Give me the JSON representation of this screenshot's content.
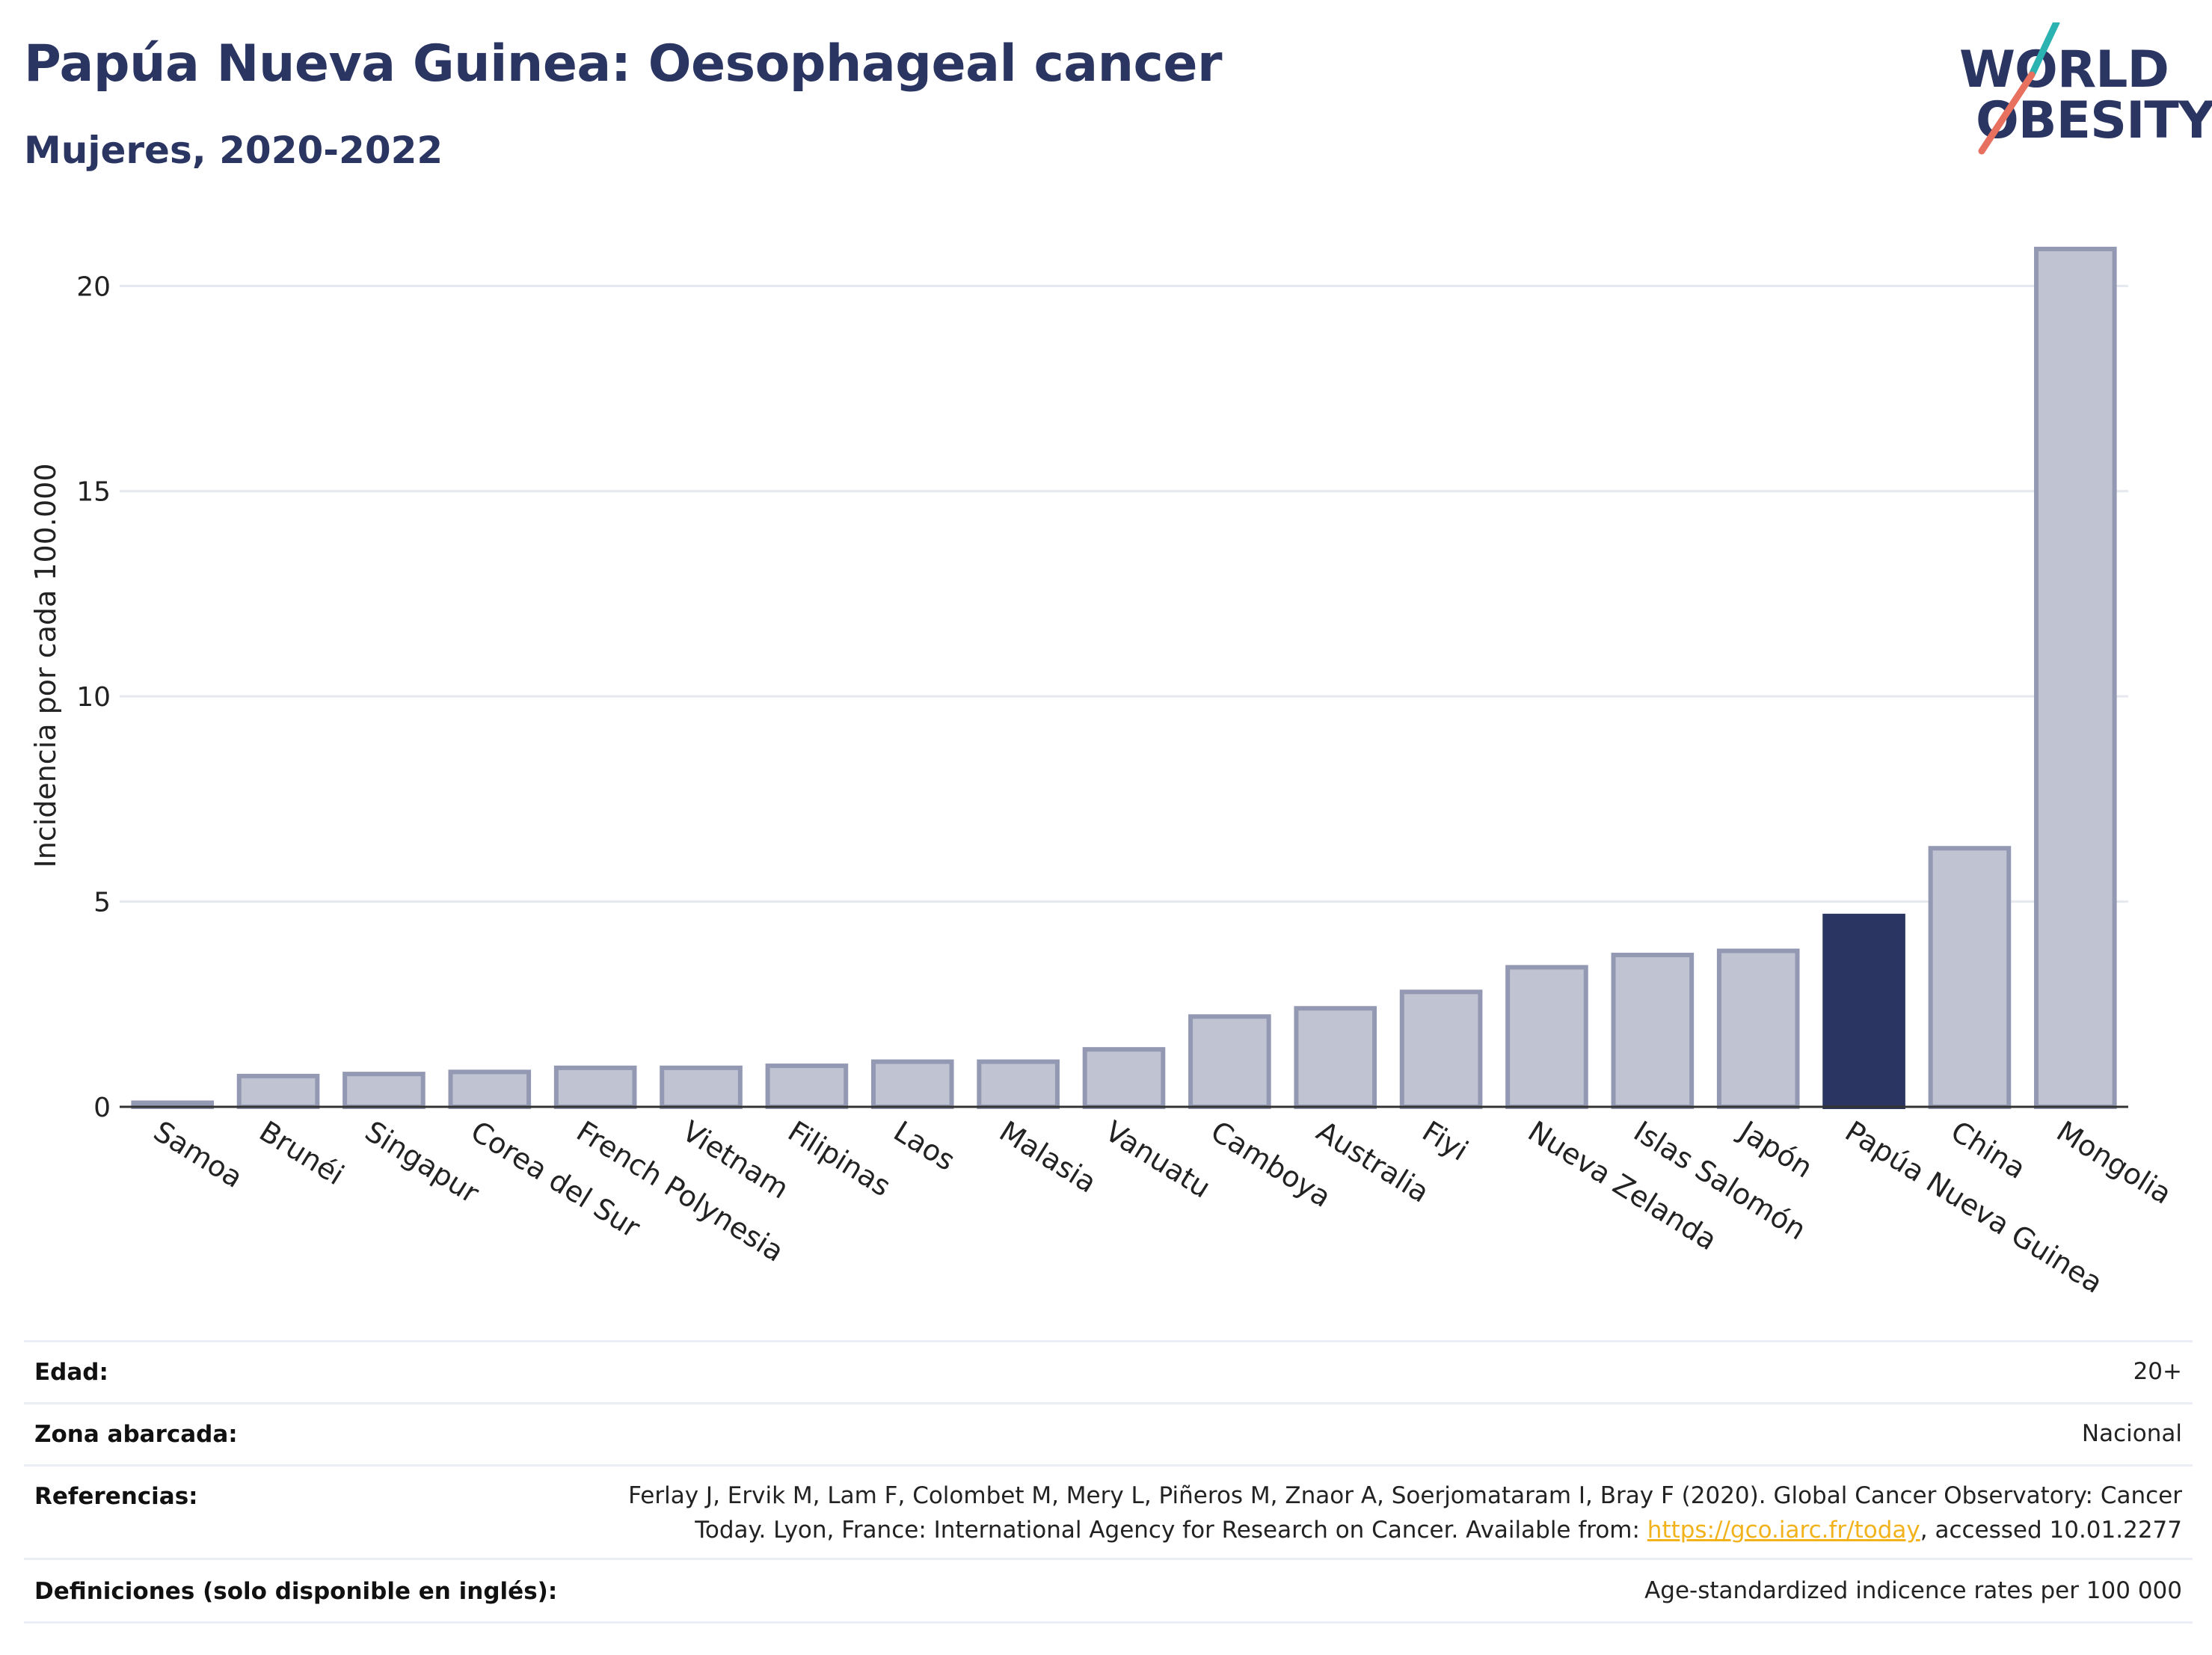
{
  "title": "Papúa Nueva Guinea: Oesophageal cancer",
  "subtitle": "Mujeres, 2020-2022",
  "logo": {
    "line1": "WORLD",
    "line2": "OBESITY",
    "accent_colors": [
      "#2ab3b1",
      "#e8705e"
    ]
  },
  "colors": {
    "bar": "#c0c3d1",
    "bar_border": "#9499b3",
    "highlight": "#2b3562",
    "grid": "#e6e8f0",
    "axis": "#333333"
  },
  "chart_data": {
    "type": "bar",
    "ylabel": "Incidencia por cada 100.000",
    "ylim": [
      0,
      21.5
    ],
    "yticks": [
      0,
      5,
      10,
      15,
      20
    ],
    "categories": [
      "Samoa",
      "Brunéi",
      "Singapur",
      "Corea del Sur",
      "French Polynesia",
      "Vietnam",
      "Filipinas",
      "Laos",
      "Malasia",
      "Vanuatu",
      "Camboya",
      "Australia",
      "Fiyi",
      "Nueva Zelanda",
      "Islas Salomón",
      "Japón",
      "Papúa Nueva Guinea",
      "China",
      "Mongolia"
    ],
    "values": [
      0.1,
      0.75,
      0.8,
      0.85,
      0.95,
      0.95,
      1.0,
      1.1,
      1.1,
      1.4,
      2.2,
      2.4,
      2.8,
      3.4,
      3.7,
      3.8,
      4.65,
      6.3,
      20.9
    ],
    "highlight": "Papúa Nueva Guinea",
    "grid": true
  },
  "info": {
    "edad_label": "Edad:",
    "edad_value": "20+",
    "zona_label": "Zona abarcada:",
    "zona_value": "Nacional",
    "ref_label": "Referencias:",
    "ref_line1": "Ferlay J, Ervik M, Lam F, Colombet M, Mery L, Piñeros M, Znaor A, Soerjomataram I, Bray F (2020). Global Cancer Observatory: Cancer",
    "ref_line2_pre": "Today. Lyon, France: International Agency for Research on Cancer. Available from: ",
    "ref_link": "https://gco.iarc.fr/today",
    "ref_line2_post": ", accessed 10.01.2277",
    "def_label": "Definiciones (solo disponible en inglés):",
    "def_value": "Age-standardized indicence rates per 100 000"
  }
}
